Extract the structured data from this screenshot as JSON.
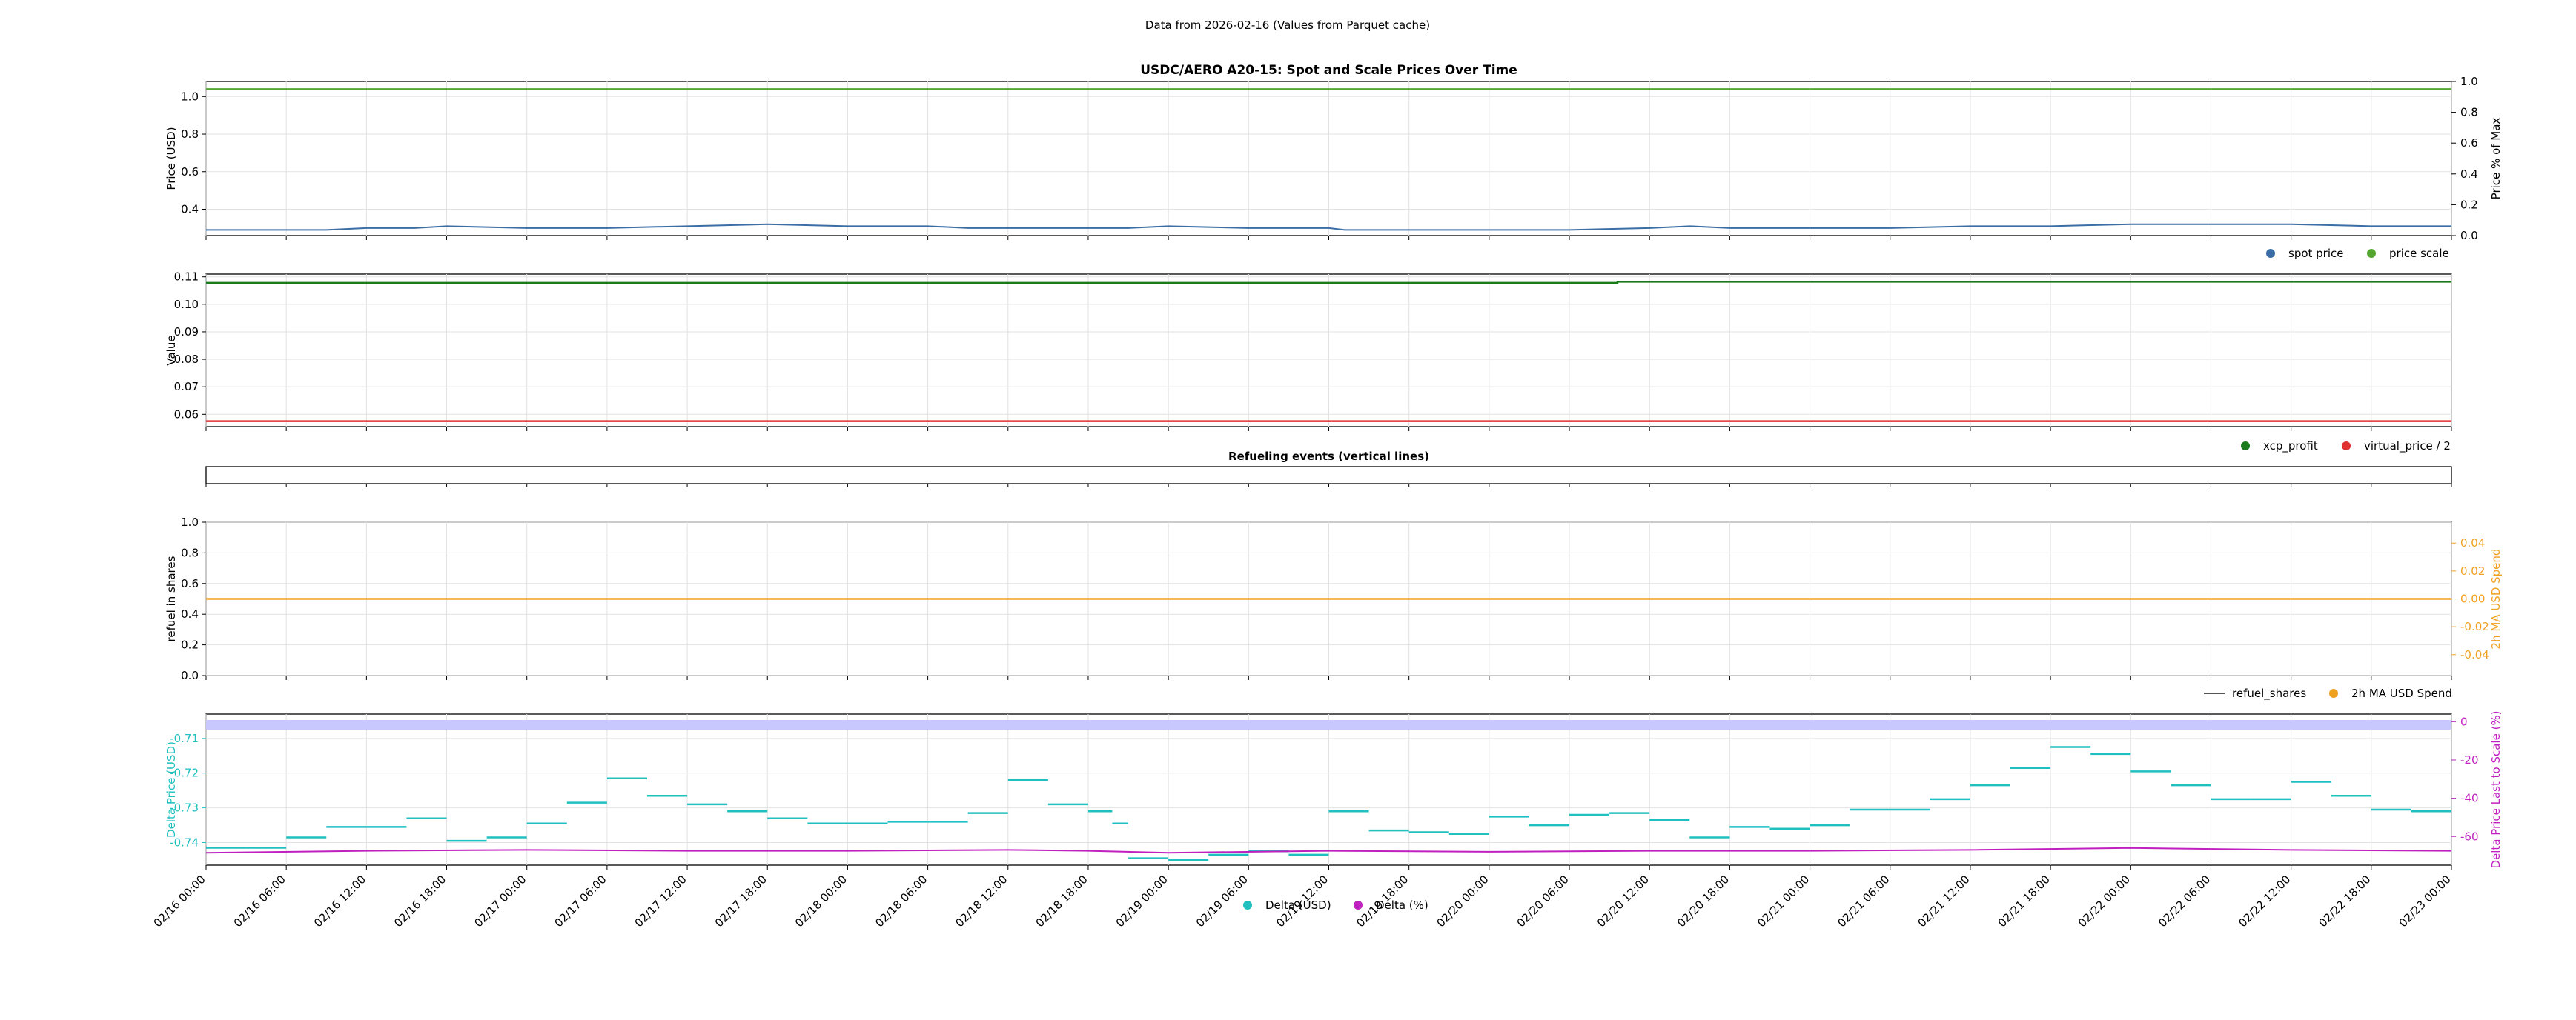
{
  "header": "Data from 2026-02-16 (Values from Parquet cache)",
  "x_ticks": [
    "02/16 00:00",
    "02/16 06:00",
    "02/16 12:00",
    "02/16 18:00",
    "02/17 00:00",
    "02/17 06:00",
    "02/17 12:00",
    "02/17 18:00",
    "02/18 00:00",
    "02/18 06:00",
    "02/18 12:00",
    "02/18 18:00",
    "02/19 00:00",
    "02/19 06:00",
    "02/19 12:00",
    "02/19 18:00",
    "02/20 00:00",
    "02/20 06:00",
    "02/20 12:00",
    "02/20 18:00",
    "02/21 00:00",
    "02/21 06:00",
    "02/21 12:00",
    "02/21 18:00",
    "02/22 00:00",
    "02/22 06:00",
    "02/22 12:00",
    "02/22 18:00",
    "02/23 00:00"
  ],
  "colors": {
    "spot": "#3a6ea5",
    "scale": "#55a630",
    "xcp": "#1b7a1b",
    "vprice": "#e03030",
    "refuel": "#555555",
    "spend": "#f0a020",
    "delta_usd": "#20c0c0",
    "delta_pct": "#c020c0",
    "band": "#c8c8ff"
  },
  "chart_data": [
    {
      "id": "spot-scale",
      "type": "line",
      "title": "USDC/AERO A20-15: Spot and Scale Prices Over Time",
      "ylabel": "Price (USD)",
      "ylabel_right": "Price % of Max",
      "ylim": [
        0.26,
        1.08
      ],
      "yticks": [
        "0.4",
        "0.6",
        "0.8",
        "1.0"
      ],
      "yticks_right": [
        "0.0",
        "0.2",
        "0.4",
        "0.6",
        "0.8",
        "1.0"
      ],
      "legend_position": "lower-right",
      "grid": true,
      "series": [
        {
          "name": "spot price",
          "x": [
            0,
            1.5,
            2,
            2.6,
            3,
            4,
            5,
            6,
            7,
            8,
            9,
            9.5,
            10,
            11,
            11.5,
            12,
            13,
            13.5,
            14,
            14.2,
            14.5,
            15,
            16,
            17,
            18,
            18.5,
            19,
            20,
            21,
            22,
            22.5,
            23,
            24,
            25,
            26,
            27,
            28
          ],
          "y": [
            0.29,
            0.29,
            0.3,
            0.3,
            0.31,
            0.3,
            0.3,
            0.31,
            0.32,
            0.31,
            0.31,
            0.3,
            0.3,
            0.3,
            0.3,
            0.31,
            0.3,
            0.3,
            0.3,
            0.29,
            0.29,
            0.29,
            0.29,
            0.29,
            0.3,
            0.31,
            0.3,
            0.3,
            0.3,
            0.31,
            0.31,
            0.31,
            0.32,
            0.32,
            0.32,
            0.31,
            0.31
          ]
        },
        {
          "name": "price scale",
          "x": [
            0,
            28
          ],
          "y": [
            1.04,
            1.04
          ]
        }
      ]
    },
    {
      "id": "profit-vprice",
      "type": "line",
      "ylabel": "Value",
      "ylim": [
        0.0555,
        0.111
      ],
      "yticks": [
        "0.06",
        "0.07",
        "0.08",
        "0.09",
        "0.10",
        "0.11"
      ],
      "legend_position": "lower-right",
      "grid": true,
      "series": [
        {
          "name": "xcp_profit",
          "x": [
            0,
            17.5,
            17.6,
            28
          ],
          "y": [
            0.1078,
            0.1078,
            0.1082,
            0.1082
          ]
        },
        {
          "name": "virtual_price / 2",
          "x": [
            0,
            28
          ],
          "y": [
            0.0575,
            0.0575
          ]
        }
      ]
    },
    {
      "id": "refuel-events",
      "type": "line",
      "title": "Refueling events (vertical lines)",
      "series": []
    },
    {
      "id": "refuel-shares",
      "type": "line",
      "ylabel": "refuel in shares",
      "ylabel_right": "2h MA USD Spend",
      "ylim": [
        0,
        1
      ],
      "yticks": [
        "0.0",
        "0.2",
        "0.4",
        "0.6",
        "0.8",
        "1.0"
      ],
      "yticks_right": [
        "-0.04",
        "-0.02",
        "0.00",
        "0.02",
        "0.04"
      ],
      "legend_position": "lower-right",
      "grid": true,
      "series": [
        {
          "name": "refuel_shares",
          "x": [
            0,
            28
          ],
          "y": [
            0.5,
            0.5
          ]
        },
        {
          "name": "2h MA USD Spend",
          "x": [
            0,
            28
          ],
          "y": [
            0.0,
            0.0
          ]
        }
      ]
    },
    {
      "id": "delta",
      "type": "scatter",
      "ylabel": "Delta Price (USD)",
      "ylabel_right": "Delta Price Last to Scale (%)",
      "ylim": [
        -0.7465,
        -0.703
      ],
      "yticks": [
        "-0.74",
        "-0.73",
        "-0.72",
        "-0.71"
      ],
      "yticks_right": [
        "-60",
        "-40",
        "-20",
        "0"
      ],
      "legend_position": "bottom-center",
      "grid": true,
      "series": [
        {
          "name": "Delta (USD)",
          "x": [
            0,
            0.5,
            1,
            1.5,
            2,
            2.5,
            3,
            3.5,
            4,
            4.5,
            5,
            5.5,
            6,
            6.5,
            7,
            7.5,
            8,
            8.5,
            9,
            9.5,
            10,
            10.5,
            11,
            11.3,
            11.5,
            12,
            12.5,
            13,
            13.5,
            14,
            14.5,
            15,
            15.5,
            16,
            16.5,
            17,
            17.5,
            18,
            18.5,
            19,
            19.5,
            20,
            20.5,
            21,
            21.5,
            22,
            22.5,
            23,
            23.5,
            24,
            24.5,
            25,
            25.5,
            26,
            26.5,
            27,
            27.5,
            28
          ],
          "y": [
            -0.7415,
            -0.7415,
            -0.7385,
            -0.7355,
            -0.7355,
            -0.733,
            -0.7395,
            -0.7385,
            -0.7345,
            -0.7285,
            -0.7215,
            -0.7265,
            -0.729,
            -0.731,
            -0.733,
            -0.7345,
            -0.7345,
            -0.734,
            -0.734,
            -0.7315,
            -0.722,
            -0.729,
            -0.731,
            -0.7345,
            -0.7445,
            -0.745,
            -0.7435,
            -0.7425,
            -0.7435,
            -0.731,
            -0.7365,
            -0.737,
            -0.7375,
            -0.7325,
            -0.735,
            -0.732,
            -0.7315,
            -0.7335,
            -0.7385,
            -0.7355,
            -0.736,
            -0.735,
            -0.7305,
            -0.7305,
            -0.7275,
            -0.7235,
            -0.7185,
            -0.7125,
            -0.7145,
            -0.7195,
            -0.7235,
            -0.7275,
            -0.7275,
            -0.7225,
            -0.7265,
            -0.7305,
            -0.731,
            -0.7335
          ]
        },
        {
          "name": "Delta (%)",
          "x": [
            0,
            2,
            4,
            6,
            8,
            10,
            11,
            12,
            14,
            16,
            18,
            20,
            22,
            24,
            26,
            28
          ],
          "y": [
            -68.5,
            -67.5,
            -67,
            -67.5,
            -67.5,
            -67,
            -67.5,
            -68.5,
            -67.5,
            -68,
            -67.5,
            -67.5,
            -67,
            -66,
            -67,
            -67.5
          ]
        },
        {
          "name": "band",
          "x": [
            0,
            28
          ],
          "y": [
            0.5,
            0.5
          ]
        }
      ]
    }
  ]
}
